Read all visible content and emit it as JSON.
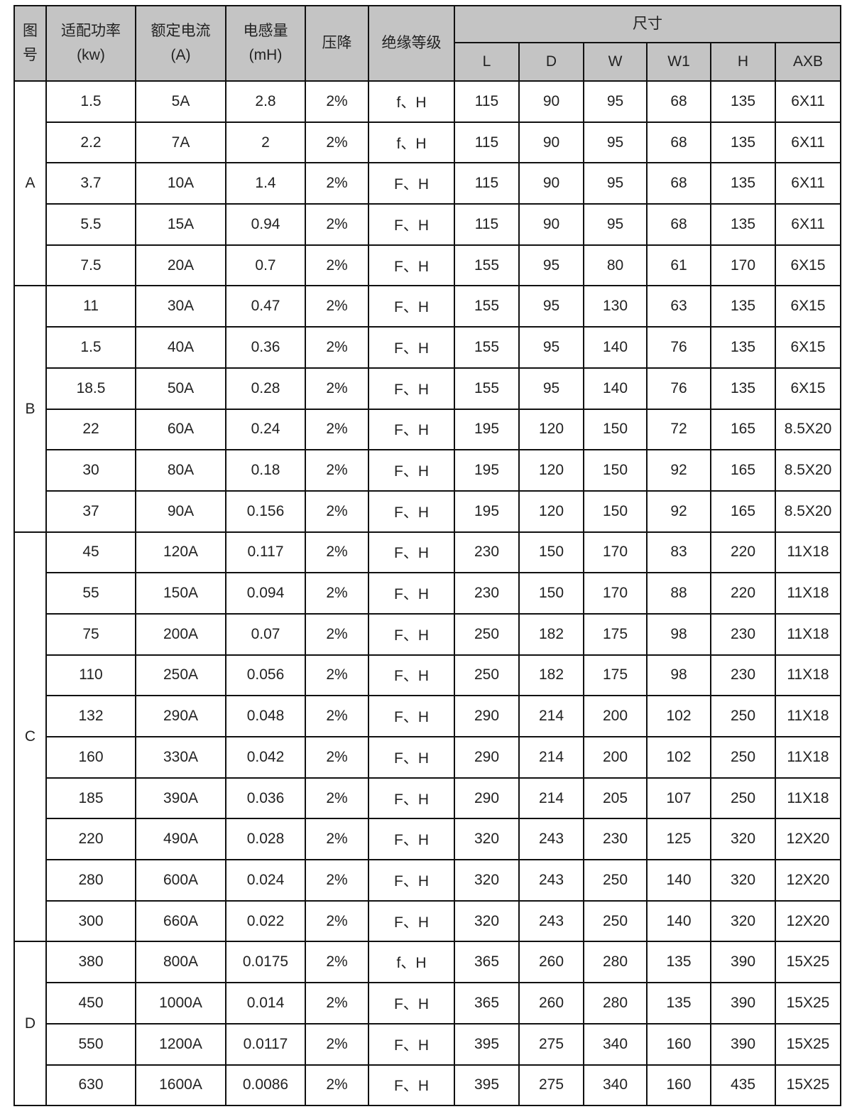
{
  "headers": {
    "fig_no": "图号",
    "power": "适配功率",
    "power_unit": "(kw)",
    "current": "额定电流",
    "current_unit": "(A)",
    "inductance": "电感量",
    "inductance_unit": "(mH)",
    "voltage_drop": "压降",
    "insulation": "绝缘等级",
    "dimensions": "尺寸",
    "dims": [
      "L",
      "D",
      "W",
      "W1",
      "H",
      "AXB"
    ]
  },
  "groups": [
    {
      "label": "A",
      "rows": [
        [
          "1.5",
          "5A",
          "2.8",
          "2%",
          "f、H",
          "115",
          "90",
          "95",
          "68",
          "135",
          "6X11"
        ],
        [
          "2.2",
          "7A",
          "2",
          "2%",
          "f、H",
          "115",
          "90",
          "95",
          "68",
          "135",
          "6X11"
        ],
        [
          "3.7",
          "10A",
          "1.4",
          "2%",
          "F、H",
          "115",
          "90",
          "95",
          "68",
          "135",
          "6X11"
        ],
        [
          "5.5",
          "15A",
          "0.94",
          "2%",
          "F、H",
          "115",
          "90",
          "95",
          "68",
          "135",
          "6X11"
        ],
        [
          "7.5",
          "20A",
          "0.7",
          "2%",
          "F、H",
          "155",
          "95",
          "80",
          "61",
          "170",
          "6X15"
        ]
      ]
    },
    {
      "label": "B",
      "rows": [
        [
          "11",
          "30A",
          "0.47",
          "2%",
          "F、H",
          "155",
          "95",
          "130",
          "63",
          "135",
          "6X15"
        ],
        [
          "1.5",
          "40A",
          "0.36",
          "2%",
          "F、H",
          "155",
          "95",
          "140",
          "76",
          "135",
          "6X15"
        ],
        [
          "18.5",
          "50A",
          "0.28",
          "2%",
          "F、H",
          "155",
          "95",
          "140",
          "76",
          "135",
          "6X15"
        ],
        [
          "22",
          "60A",
          "0.24",
          "2%",
          "F、H",
          "195",
          "120",
          "150",
          "72",
          "165",
          "8.5X20"
        ],
        [
          "30",
          "80A",
          "0.18",
          "2%",
          "F、H",
          "195",
          "120",
          "150",
          "92",
          "165",
          "8.5X20"
        ],
        [
          "37",
          "90A",
          "0.156",
          "2%",
          "F、H",
          "195",
          "120",
          "150",
          "92",
          "165",
          "8.5X20"
        ]
      ]
    },
    {
      "label": "C",
      "rows": [
        [
          "45",
          "120A",
          "0.117",
          "2%",
          "F、H",
          "230",
          "150",
          "170",
          "83",
          "220",
          "11X18"
        ],
        [
          "55",
          "150A",
          "0.094",
          "2%",
          "F、H",
          "230",
          "150",
          "170",
          "88",
          "220",
          "11X18"
        ],
        [
          "75",
          "200A",
          "0.07",
          "2%",
          "F、H",
          "250",
          "182",
          "175",
          "98",
          "230",
          "11X18"
        ],
        [
          "110",
          "250A",
          "0.056",
          "2%",
          "F、H",
          "250",
          "182",
          "175",
          "98",
          "230",
          "11X18"
        ],
        [
          "132",
          "290A",
          "0.048",
          "2%",
          "F、H",
          "290",
          "214",
          "200",
          "102",
          "250",
          "11X18"
        ],
        [
          "160",
          "330A",
          "0.042",
          "2%",
          "F、H",
          "290",
          "214",
          "200",
          "102",
          "250",
          "11X18"
        ],
        [
          "185",
          "390A",
          "0.036",
          "2%",
          "F、H",
          "290",
          "214",
          "205",
          "107",
          "250",
          "11X18"
        ],
        [
          "220",
          "490A",
          "0.028",
          "2%",
          "F、H",
          "320",
          "243",
          "230",
          "125",
          "320",
          "12X20"
        ],
        [
          "280",
          "600A",
          "0.024",
          "2%",
          "F、H",
          "320",
          "243",
          "250",
          "140",
          "320",
          "12X20"
        ],
        [
          "300",
          "660A",
          "0.022",
          "2%",
          "F、H",
          "320",
          "243",
          "250",
          "140",
          "320",
          "12X20"
        ]
      ]
    },
    {
      "label": "D",
      "rows": [
        [
          "380",
          "800A",
          "0.0175",
          "2%",
          "f、H",
          "365",
          "260",
          "280",
          "135",
          "390",
          "15X25"
        ],
        [
          "450",
          "1000A",
          "0.014",
          "2%",
          "F、H",
          "365",
          "260",
          "280",
          "135",
          "390",
          "15X25"
        ],
        [
          "550",
          "1200A",
          "0.0117",
          "2%",
          "F、H",
          "395",
          "275",
          "340",
          "160",
          "390",
          "15X25"
        ],
        [
          "630",
          "1600A",
          "0.0086",
          "2%",
          "F、H",
          "395",
          "275",
          "340",
          "160",
          "435",
          "15X25"
        ]
      ]
    }
  ]
}
